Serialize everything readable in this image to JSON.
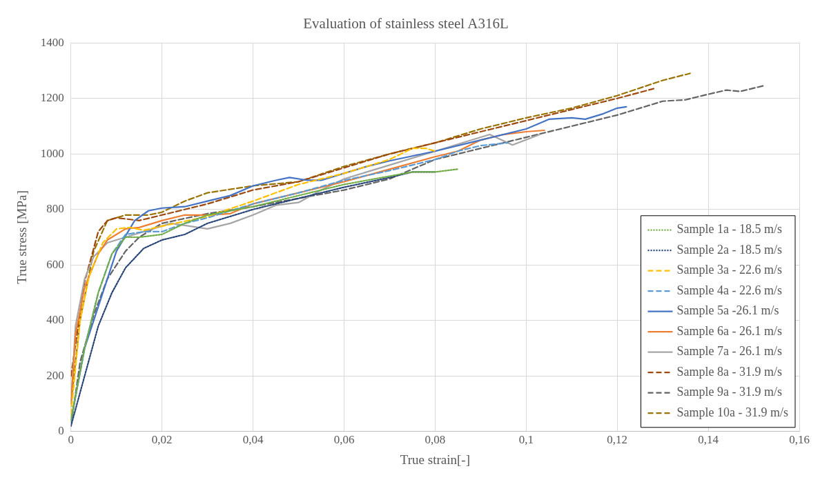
{
  "chart_data": {
    "type": "line",
    "title": "Evaluation of stainless steel A316L",
    "xlabel": "True strain[-]",
    "ylabel": "True stress [MPa]",
    "xlim": [
      0,
      0.16
    ],
    "xticks": [
      {
        "value": 0,
        "label": "0"
      },
      {
        "value": 0.02,
        "label": "0,02"
      },
      {
        "value": 0.04,
        "label": "0,04"
      },
      {
        "value": 0.06,
        "label": "0,06"
      },
      {
        "value": 0.08,
        "label": "0,08"
      },
      {
        "value": 0.1,
        "label": "0,1"
      },
      {
        "value": 0.12,
        "label": "0,12"
      },
      {
        "value": 0.14,
        "label": "0,14"
      },
      {
        "value": 0.16,
        "label": "0,16"
      }
    ],
    "ylim": [
      0,
      1400
    ],
    "yticks": [
      0,
      200,
      400,
      600,
      800,
      1000,
      1200,
      1400
    ],
    "grid": true,
    "legend": "bottom right",
    "marker": "none",
    "series": [
      {
        "name": "Sample 1a - 18.5 m/s",
        "color": "#70ad47",
        "line_style": "dotted",
        "x": [
          0,
          0.003,
          0.006,
          0.009,
          0.012,
          0.015,
          0.02,
          0.025,
          0.03,
          0.04,
          0.05,
          0.06,
          0.07,
          0.075,
          0.08,
          0.085
        ],
        "values": [
          40,
          300,
          500,
          640,
          700,
          700,
          710,
          750,
          780,
          810,
          850,
          890,
          920,
          935,
          935,
          945
        ]
      },
      {
        "name": "Sample 2a - 18.5 m/s",
        "color": "#264478",
        "line_style": "dotted",
        "x": [
          0,
          0.003,
          0.006,
          0.009,
          0.012,
          0.016,
          0.02,
          0.025,
          0.03,
          0.04,
          0.05,
          0.06,
          0.07,
          0.075,
          0.08
        ],
        "values": [
          20,
          200,
          380,
          500,
          590,
          660,
          690,
          710,
          750,
          800,
          840,
          880,
          915,
          935,
          935
        ]
      },
      {
        "name": "Sample 3a - 22.6 m/s",
        "color": "#ffc000",
        "line_style": "dashed",
        "x": [
          0,
          0.002,
          0.004,
          0.007,
          0.01,
          0.013,
          0.016,
          0.02,
          0.03,
          0.04,
          0.045,
          0.05,
          0.06,
          0.07,
          0.075,
          0.078,
          0.08
        ],
        "values": [
          60,
          400,
          560,
          680,
          730,
          735,
          725,
          740,
          775,
          830,
          860,
          890,
          930,
          980,
          1020,
          1020,
          1010
        ]
      },
      {
        "name": "Sample 4a - 22.6 m/s",
        "color": "#5b9bd5",
        "line_style": "dashed",
        "x": [
          0,
          0.003,
          0.006,
          0.009,
          0.012,
          0.016,
          0.02,
          0.025,
          0.03,
          0.04,
          0.05,
          0.06,
          0.07,
          0.075,
          0.08,
          0.085,
          0.09,
          0.096
        ],
        "values": [
          40,
          300,
          500,
          640,
          710,
          720,
          720,
          750,
          770,
          820,
          860,
          905,
          940,
          960,
          980,
          1010,
          1030,
          1040
        ]
      },
      {
        "name": "Sample 5a -26.1 m/s",
        "color": "#4472c4",
        "line_style": "solid",
        "x": [
          0,
          0.003,
          0.006,
          0.01,
          0.014,
          0.017,
          0.02,
          0.025,
          0.03,
          0.035,
          0.04,
          0.045,
          0.048,
          0.052,
          0.055,
          0.06,
          0.065,
          0.07,
          0.08,
          0.09,
          0.1,
          0.105,
          0.11,
          0.113,
          0.117,
          0.12,
          0.122
        ],
        "values": [
          40,
          300,
          450,
          650,
          760,
          795,
          805,
          810,
          830,
          850,
          885,
          905,
          915,
          905,
          905,
          930,
          955,
          975,
          1010,
          1050,
          1090,
          1125,
          1130,
          1125,
          1145,
          1165,
          1170
        ]
      },
      {
        "name": "Sample 6a - 26.1 m/s",
        "color": "#ed7d31",
        "line_style": "solid",
        "x": [
          0,
          0.001,
          0.003,
          0.006,
          0.008,
          0.012,
          0.015,
          0.02,
          0.025,
          0.03,
          0.035,
          0.04,
          0.05,
          0.06,
          0.07,
          0.08,
          0.085,
          0.09,
          0.095,
          0.1,
          0.104
        ],
        "values": [
          100,
          350,
          520,
          640,
          690,
          730,
          735,
          760,
          780,
          780,
          785,
          820,
          860,
          900,
          945,
          990,
          1010,
          1050,
          1070,
          1080,
          1085
        ]
      },
      {
        "name": "Sample 7a - 26.1 m/s",
        "color": "#a5a5a5",
        "line_style": "solid",
        "x": [
          0,
          0.001,
          0.003,
          0.005,
          0.008,
          0.012,
          0.018,
          0.022,
          0.026,
          0.03,
          0.035,
          0.04,
          0.045,
          0.05,
          0.055,
          0.06,
          0.065,
          0.07,
          0.08,
          0.092,
          0.097,
          0.103
        ],
        "values": [
          100,
          380,
          550,
          630,
          680,
          700,
          730,
          750,
          740,
          730,
          750,
          780,
          815,
          825,
          870,
          910,
          935,
          960,
          1010,
          1070,
          1032,
          1070
        ]
      },
      {
        "name": "Sample 8a - 31.9 m/s",
        "color": "#9e480e",
        "line_style": "dashed",
        "x": [
          0,
          0.003,
          0.006,
          0.008,
          0.01,
          0.015,
          0.02,
          0.03,
          0.04,
          0.05,
          0.06,
          0.07,
          0.08,
          0.09,
          0.1,
          0.11,
          0.12,
          0.128
        ],
        "values": [
          200,
          540,
          720,
          760,
          770,
          760,
          780,
          820,
          870,
          900,
          950,
          1000,
          1040,
          1080,
          1120,
          1160,
          1200,
          1235
        ]
      },
      {
        "name": "Sample 9a - 31.9 m/s",
        "color": "#636363",
        "line_style": "dashed",
        "x": [
          0,
          0.002,
          0.005,
          0.008,
          0.012,
          0.015,
          0.02,
          0.03,
          0.04,
          0.05,
          0.06,
          0.07,
          0.08,
          0.09,
          0.1,
          0.11,
          0.12,
          0.13,
          0.135,
          0.14,
          0.144,
          0.147,
          0.152
        ],
        "values": [
          20,
          250,
          420,
          550,
          650,
          700,
          750,
          785,
          810,
          840,
          870,
          910,
          980,
          1020,
          1060,
          1100,
          1140,
          1190,
          1195,
          1215,
          1230,
          1225,
          1245
        ]
      },
      {
        "name": "Sample 10a - 31.9 m/s",
        "color": "#997300",
        "line_style": "dashed",
        "x": [
          0,
          0.002,
          0.005,
          0.008,
          0.012,
          0.017,
          0.02,
          0.025,
          0.03,
          0.04,
          0.05,
          0.06,
          0.07,
          0.08,
          0.09,
          0.1,
          0.11,
          0.12,
          0.13,
          0.136
        ],
        "values": [
          100,
          400,
          650,
          760,
          780,
          780,
          790,
          830,
          860,
          885,
          900,
          955,
          1000,
          1040,
          1090,
          1130,
          1165,
          1210,
          1265,
          1290
        ]
      }
    ]
  }
}
